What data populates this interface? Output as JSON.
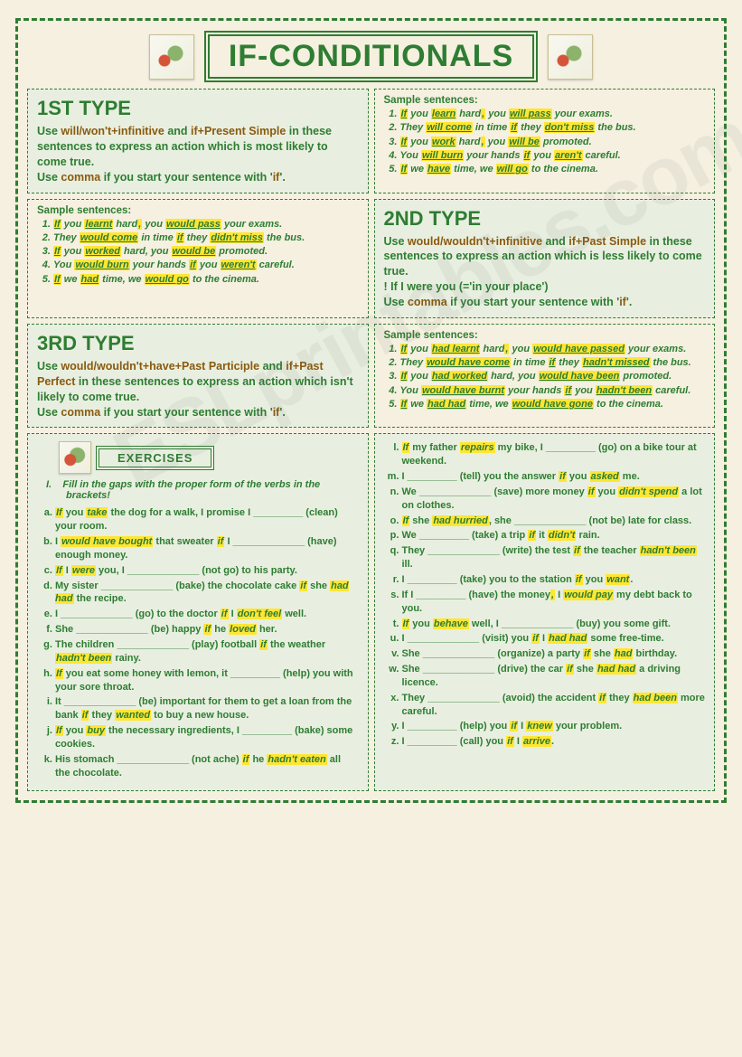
{
  "title": "IF-CONDITIONALS",
  "type1": {
    "heading": "1ST TYPE",
    "desc_parts": [
      "Use ",
      "will/won't+infinitive",
      " and ",
      "if+Present Simple",
      " in these sentences to express an action which is most likely to come true.",
      "Use ",
      "comma",
      " if you start your sentence with '",
      "if",
      "'."
    ],
    "samples_title": "Sample sentences:",
    "samples": [
      [
        [
          "If",
          1
        ],
        [
          " you ",
          0
        ],
        [
          "learn",
          1
        ],
        [
          " hard",
          0
        ],
        [
          ",",
          2
        ],
        [
          " you ",
          0
        ],
        [
          "will pass",
          1
        ],
        [
          " your exams.",
          0
        ]
      ],
      [
        [
          "They ",
          0
        ],
        [
          "will come",
          1
        ],
        [
          " in time ",
          0
        ],
        [
          "if",
          1
        ],
        [
          " they ",
          0
        ],
        [
          "don't miss",
          1
        ],
        [
          " the bus.",
          0
        ]
      ],
      [
        [
          "If",
          1
        ],
        [
          " you ",
          0
        ],
        [
          "work",
          1
        ],
        [
          " hard",
          0
        ],
        [
          ",",
          2
        ],
        [
          " you ",
          0
        ],
        [
          "will be",
          1
        ],
        [
          " promoted.",
          0
        ]
      ],
      [
        [
          "You ",
          0
        ],
        [
          "will burn",
          1
        ],
        [
          " your hands ",
          0
        ],
        [
          "if",
          1
        ],
        [
          " you ",
          0
        ],
        [
          "aren't",
          1
        ],
        [
          " careful.",
          0
        ]
      ],
      [
        [
          "If",
          1
        ],
        [
          " we ",
          0
        ],
        [
          "have",
          1
        ],
        [
          " time, we ",
          0
        ],
        [
          "will go",
          1
        ],
        [
          " to the cinema.",
          0
        ]
      ]
    ]
  },
  "type2": {
    "heading": "2ND TYPE",
    "desc_parts": [
      "Use ",
      "would/wouldn't+infinitive",
      " and ",
      "if+Past Simple",
      " in these sentences to express an action which is less likely to come true.",
      "! If I were you (='in your place')",
      "Use ",
      "comma",
      " if you start your sentence with '",
      "if",
      "'."
    ],
    "samples_title": "Sample sentences:",
    "samples": [
      [
        [
          "If",
          1
        ],
        [
          " you ",
          0
        ],
        [
          "learnt",
          1
        ],
        [
          " hard",
          0
        ],
        [
          ",",
          2
        ],
        [
          " you ",
          0
        ],
        [
          "would pass",
          1
        ],
        [
          " your exams.",
          0
        ]
      ],
      [
        [
          "They ",
          0
        ],
        [
          "would come",
          1
        ],
        [
          " in time ",
          0
        ],
        [
          "if",
          1
        ],
        [
          " they ",
          0
        ],
        [
          "didn't miss",
          1
        ],
        [
          " the bus.",
          0
        ]
      ],
      [
        [
          "If",
          1
        ],
        [
          " you ",
          0
        ],
        [
          "worked",
          1
        ],
        [
          " hard, you ",
          0
        ],
        [
          "would be",
          1
        ],
        [
          " promoted.",
          0
        ]
      ],
      [
        [
          "You ",
          0
        ],
        [
          "would burn",
          1
        ],
        [
          " your hands ",
          0
        ],
        [
          "if",
          1
        ],
        [
          " you ",
          0
        ],
        [
          "weren't",
          1
        ],
        [
          " careful.",
          0
        ]
      ],
      [
        [
          "If",
          1
        ],
        [
          " we ",
          0
        ],
        [
          "had",
          1
        ],
        [
          " time, we ",
          0
        ],
        [
          "would go",
          1
        ],
        [
          " to the cinema.",
          0
        ]
      ]
    ]
  },
  "type3": {
    "heading": "3RD TYPE",
    "desc_parts": [
      "Use ",
      "would/wouldn't+have+Past Participle",
      " and ",
      "if+Past Perfect",
      " in these sentences to express an action which isn't likely to come true.",
      "Use ",
      "comma",
      " if you start your sentence with '",
      "if",
      "'."
    ],
    "samples_title": "Sample sentences:",
    "samples": [
      [
        [
          "If",
          1
        ],
        [
          " you ",
          0
        ],
        [
          "had learnt",
          1
        ],
        [
          " hard",
          0
        ],
        [
          ",",
          2
        ],
        [
          " you ",
          0
        ],
        [
          "would have passed",
          1
        ],
        [
          " your exams.",
          0
        ]
      ],
      [
        [
          "They ",
          0
        ],
        [
          "would have come",
          1
        ],
        [
          " in time ",
          0
        ],
        [
          "if",
          1
        ],
        [
          " they ",
          0
        ],
        [
          "hadn't missed",
          1
        ],
        [
          " the bus.",
          0
        ]
      ],
      [
        [
          "If",
          1
        ],
        [
          " you ",
          0
        ],
        [
          "had worked",
          1
        ],
        [
          " hard, you ",
          0
        ],
        [
          "would have been",
          1
        ],
        [
          " promoted.",
          0
        ]
      ],
      [
        [
          "You ",
          0
        ],
        [
          "would have burnt",
          1
        ],
        [
          " your hands ",
          0
        ],
        [
          "if",
          1
        ],
        [
          " you ",
          0
        ],
        [
          "hadn't been",
          1
        ],
        [
          " careful.",
          0
        ]
      ],
      [
        [
          "If",
          1
        ],
        [
          " we ",
          0
        ],
        [
          "had had",
          1
        ],
        [
          " time, we ",
          0
        ],
        [
          "would have gone",
          1
        ],
        [
          " to the cinema.",
          0
        ]
      ]
    ]
  },
  "exercises": {
    "label": "EXERCISES",
    "instruction_num": "I.",
    "instruction": "Fill in the gaps with the proper form of the verbs in the brackets!",
    "left": [
      [
        [
          "If",
          2
        ],
        [
          " you ",
          0
        ],
        [
          "take",
          2
        ],
        [
          " the dog for a walk, I promise I _________ (clean) your room.",
          0
        ]
      ],
      [
        [
          "I ",
          0
        ],
        [
          "would have bought",
          2
        ],
        [
          " that sweater ",
          0
        ],
        [
          "if",
          2
        ],
        [
          " I _____________ (have) enough money.",
          0
        ]
      ],
      [
        [
          "If",
          2
        ],
        [
          " I ",
          0
        ],
        [
          "were",
          2
        ],
        [
          " you, I _____________ (not go) to his party.",
          0
        ]
      ],
      [
        [
          "My sister _____________ (bake) the chocolate cake ",
          0
        ],
        [
          "if",
          2
        ],
        [
          " she ",
          0
        ],
        [
          "had had",
          2
        ],
        [
          " the recipe.",
          0
        ]
      ],
      [
        [
          "I _____________ (go) to the doctor ",
          0
        ],
        [
          "if",
          2
        ],
        [
          " I ",
          0
        ],
        [
          "don't feel",
          2
        ],
        [
          " well.",
          0
        ]
      ],
      [
        [
          "She _____________ (be) happy ",
          0
        ],
        [
          "if",
          2
        ],
        [
          " he ",
          0
        ],
        [
          "loved",
          2
        ],
        [
          " her.",
          0
        ]
      ],
      [
        [
          "The children _____________ (play) football ",
          0
        ],
        [
          "if",
          2
        ],
        [
          " the weather ",
          0
        ],
        [
          "hadn't been",
          2
        ],
        [
          " rainy.",
          0
        ]
      ],
      [
        [
          "If",
          2
        ],
        [
          " you eat some honey with lemon, it _________ (help) you with your sore throat.",
          0
        ]
      ],
      [
        [
          "It _____________ (be) important for them to get a loan from the bank ",
          0
        ],
        [
          "if",
          2
        ],
        [
          " they ",
          0
        ],
        [
          "wanted",
          2
        ],
        [
          " to buy a new house.",
          0
        ]
      ],
      [
        [
          "If",
          2
        ],
        [
          " you ",
          0
        ],
        [
          "buy",
          2
        ],
        [
          " the necessary ingredients, I _________ (bake) some cookies.",
          0
        ]
      ],
      [
        [
          "His stomach _____________ (not ache) ",
          0
        ],
        [
          "if",
          2
        ],
        [
          " he ",
          0
        ],
        [
          "hadn't eaten",
          2
        ],
        [
          " all the chocolate.",
          0
        ]
      ]
    ],
    "right_start": 12,
    "right": [
      [
        [
          "If",
          2
        ],
        [
          " my father ",
          0
        ],
        [
          "repairs",
          2
        ],
        [
          " my bike, I _________ (go) on a bike tour at weekend.",
          0
        ]
      ],
      [
        [
          "I _________ (tell) you the answer ",
          0
        ],
        [
          "if",
          2
        ],
        [
          " you ",
          0
        ],
        [
          "asked",
          2
        ],
        [
          " me.",
          0
        ]
      ],
      [
        [
          "We _____________ (save) more money ",
          0
        ],
        [
          "if",
          2
        ],
        [
          " you ",
          0
        ],
        [
          "didn't spend",
          2
        ],
        [
          " a lot on clothes.",
          0
        ]
      ],
      [
        [
          "If",
          2
        ],
        [
          " she ",
          0
        ],
        [
          "had hurried",
          2
        ],
        [
          ", she _____________ (not be) late for class.",
          0
        ]
      ],
      [
        [
          "We _________ (take) a trip ",
          0
        ],
        [
          "if",
          2
        ],
        [
          " it ",
          0
        ],
        [
          "didn't",
          2
        ],
        [
          " rain.",
          0
        ]
      ],
      [
        [
          "They _____________ (write) the test ",
          0
        ],
        [
          "if",
          2
        ],
        [
          " the teacher ",
          0
        ],
        [
          "hadn't been",
          2
        ],
        [
          " ill.",
          0
        ]
      ],
      [
        [
          "I _________ (take) you to the station ",
          0
        ],
        [
          "if",
          2
        ],
        [
          " you ",
          0
        ],
        [
          "want",
          2
        ],
        [
          ".",
          0
        ]
      ],
      [
        [
          "If I _________ (have) the money",
          0
        ],
        [
          ",",
          2
        ],
        [
          " I ",
          0
        ],
        [
          "would pay",
          2
        ],
        [
          " my debt back to you.",
          0
        ]
      ],
      [
        [
          "If",
          2
        ],
        [
          " you ",
          0
        ],
        [
          "behave",
          2
        ],
        [
          " well, I _____________ (buy) you some gift.",
          0
        ]
      ],
      [
        [
          "I _____________ (visit) you ",
          0
        ],
        [
          "if",
          2
        ],
        [
          " I ",
          0
        ],
        [
          "had had",
          2
        ],
        [
          " some free-time.",
          0
        ]
      ],
      [
        [
          "She _____________ (organize) a party ",
          0
        ],
        [
          "if",
          2
        ],
        [
          " she ",
          0
        ],
        [
          "had",
          2
        ],
        [
          " birthday.",
          0
        ]
      ],
      [
        [
          "She _____________ (drive) the car ",
          0
        ],
        [
          "if",
          2
        ],
        [
          " she ",
          0
        ],
        [
          "had had",
          2
        ],
        [
          " a driving licence.",
          0
        ]
      ],
      [
        [
          "They _____________ (avoid) the accident ",
          0
        ],
        [
          "if",
          2
        ],
        [
          " they ",
          0
        ],
        [
          "had been",
          2
        ],
        [
          " more careful.",
          0
        ]
      ],
      [
        [
          "I _________ (help) you ",
          0
        ],
        [
          "if",
          2
        ],
        [
          " I ",
          0
        ],
        [
          "knew",
          2
        ],
        [
          " your problem.",
          0
        ]
      ],
      [
        [
          "I _________ (call) you ",
          0
        ],
        [
          "if",
          2
        ],
        [
          " I ",
          0
        ],
        [
          "arrive",
          2
        ],
        [
          ".",
          0
        ]
      ]
    ]
  },
  "colors": {
    "border": "#2e7d32",
    "bg_page": "#f5f0e0",
    "bg_box": "#e8efe0",
    "highlight": "#ffe633",
    "accent_text": "#8a5a0e"
  }
}
